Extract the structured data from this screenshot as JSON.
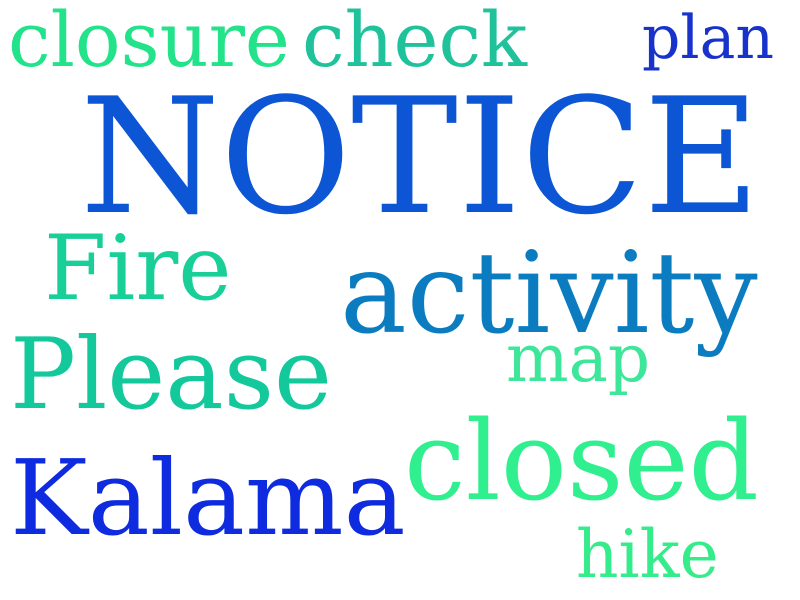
{
  "words": [
    {
      "text": "closure",
      "color": "#22e28a"
    },
    {
      "text": "check",
      "color": "#1fc29a"
    },
    {
      "text": "plan",
      "color": "#1832cc"
    },
    {
      "text": "NOTICE",
      "color": "#0c56d6"
    },
    {
      "text": "Fire",
      "color": "#18cf98"
    },
    {
      "text": "activity",
      "color": "#0c7cc0"
    },
    {
      "text": "map",
      "color": "#3ee69a"
    },
    {
      "text": "Please",
      "color": "#13c89a"
    },
    {
      "text": "closed",
      "color": "#2fef8e"
    },
    {
      "text": "Kalama",
      "color": "#0f2be0"
    },
    {
      "text": "hike",
      "color": "#34ec8a"
    }
  ]
}
